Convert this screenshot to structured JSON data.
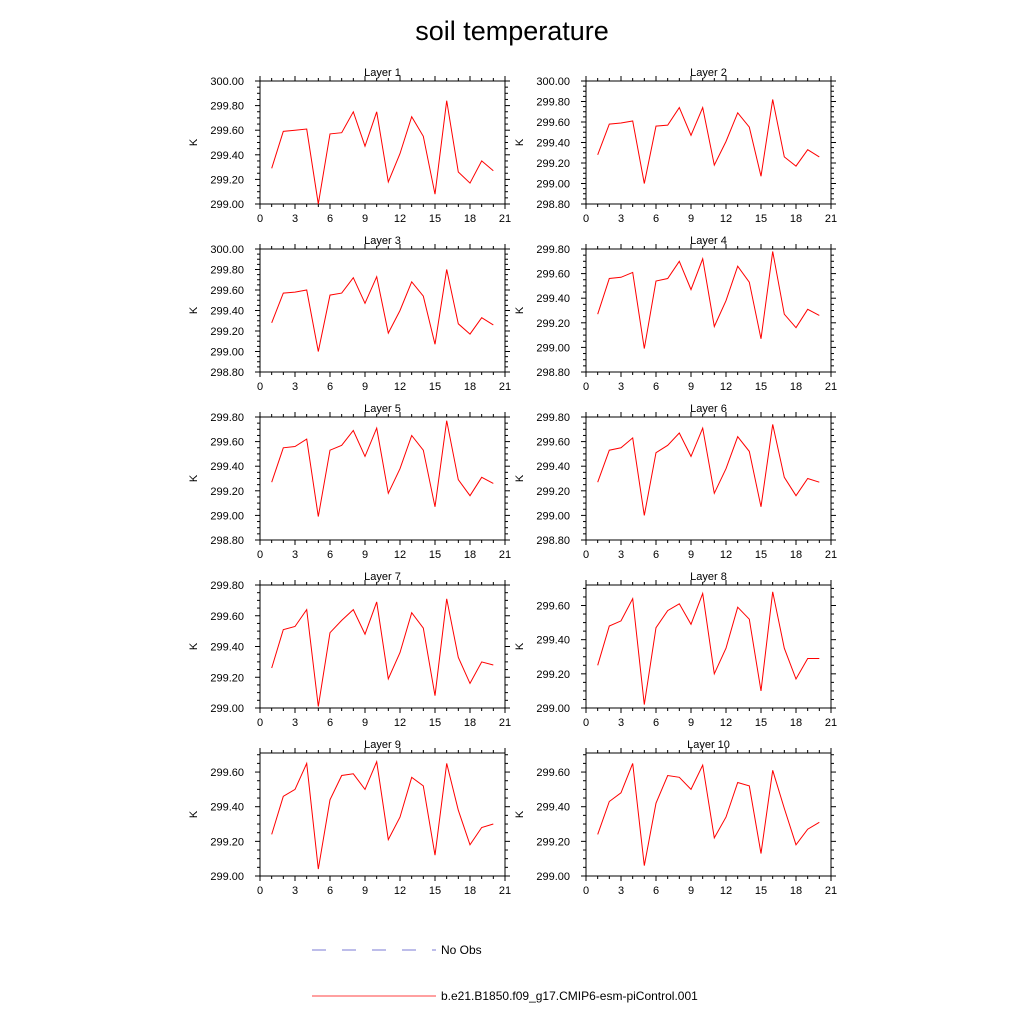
{
  "title": "soil temperature",
  "colors": {
    "model": "#ff0000",
    "obs": "#7b7bd6",
    "axis": "#000000"
  },
  "legend": {
    "entries": [
      {
        "label": "No Obs",
        "style": "dashed",
        "color": "#7b7bd6"
      },
      {
        "label": "b.e21.B1850.f09_g17.CMIP6-esm-piControl.001",
        "style": "solid",
        "color": "#ff0000"
      }
    ]
  },
  "chart_data": [
    {
      "type": "line",
      "title": "Layer 1",
      "ylabel": "K",
      "xlim": [
        0,
        21
      ],
      "ylim": [
        299.0,
        300.0
      ],
      "xticks": [
        0,
        3,
        6,
        9,
        12,
        15,
        18,
        21
      ],
      "yticks": [
        "299.00",
        "299.20",
        "299.40",
        "299.60",
        "299.80",
        "300.00"
      ],
      "x": [
        1,
        2,
        3,
        4,
        5,
        6,
        7,
        8,
        9,
        10,
        11,
        12,
        13,
        14,
        15,
        16,
        17,
        18,
        19,
        20
      ],
      "series": [
        {
          "name": "b.e21.B1850.f09_g17.CMIP6-esm-piControl.001",
          "values": [
            299.29,
            299.59,
            299.6,
            299.61,
            299.0,
            299.57,
            299.58,
            299.75,
            299.47,
            299.75,
            299.18,
            299.41,
            299.71,
            299.55,
            299.08,
            299.84,
            299.26,
            299.17,
            299.35,
            299.27
          ]
        }
      ]
    },
    {
      "type": "line",
      "title": "Layer 2",
      "ylabel": "K",
      "xlim": [
        0,
        21
      ],
      "ylim": [
        298.8,
        300.0
      ],
      "xticks": [
        0,
        3,
        6,
        9,
        12,
        15,
        18,
        21
      ],
      "yticks": [
        "298.80",
        "299.00",
        "299.20",
        "299.40",
        "299.60",
        "299.80",
        "300.00"
      ],
      "x": [
        1,
        2,
        3,
        4,
        5,
        6,
        7,
        8,
        9,
        10,
        11,
        12,
        13,
        14,
        15,
        16,
        17,
        18,
        19,
        20
      ],
      "series": [
        {
          "name": "b.e21.B1850.f09_g17.CMIP6-esm-piControl.001",
          "values": [
            299.28,
            299.58,
            299.59,
            299.61,
            299.0,
            299.56,
            299.57,
            299.74,
            299.47,
            299.74,
            299.18,
            299.41,
            299.69,
            299.55,
            299.07,
            299.82,
            299.26,
            299.17,
            299.33,
            299.26
          ]
        }
      ]
    },
    {
      "type": "line",
      "title": "Layer 3",
      "ylabel": "K",
      "xlim": [
        0,
        21
      ],
      "ylim": [
        298.8,
        300.0
      ],
      "xticks": [
        0,
        3,
        6,
        9,
        12,
        15,
        18,
        21
      ],
      "yticks": [
        "298.80",
        "299.00",
        "299.20",
        "299.40",
        "299.60",
        "299.80",
        "300.00"
      ],
      "x": [
        1,
        2,
        3,
        4,
        5,
        6,
        7,
        8,
        9,
        10,
        11,
        12,
        13,
        14,
        15,
        16,
        17,
        18,
        19,
        20
      ],
      "series": [
        {
          "name": "b.e21.B1850.f09_g17.CMIP6-esm-piControl.001",
          "values": [
            299.28,
            299.57,
            299.58,
            299.6,
            299.0,
            299.55,
            299.57,
            299.72,
            299.47,
            299.73,
            299.18,
            299.4,
            299.68,
            299.54,
            299.07,
            299.8,
            299.27,
            299.17,
            299.33,
            299.26
          ]
        }
      ]
    },
    {
      "type": "line",
      "title": "Layer 4",
      "ylabel": "K",
      "xlim": [
        0,
        21
      ],
      "ylim": [
        298.8,
        299.8
      ],
      "xticks": [
        0,
        3,
        6,
        9,
        12,
        15,
        18,
        21
      ],
      "yticks": [
        "298.80",
        "299.00",
        "299.20",
        "299.40",
        "299.60",
        "299.80"
      ],
      "x": [
        1,
        2,
        3,
        4,
        5,
        6,
        7,
        8,
        9,
        10,
        11,
        12,
        13,
        14,
        15,
        16,
        17,
        18,
        19,
        20
      ],
      "series": [
        {
          "name": "b.e21.B1850.f09_g17.CMIP6-esm-piControl.001",
          "values": [
            299.27,
            299.56,
            299.57,
            299.61,
            298.99,
            299.54,
            299.56,
            299.7,
            299.47,
            299.72,
            299.17,
            299.38,
            299.66,
            299.53,
            299.07,
            299.78,
            299.27,
            299.16,
            299.31,
            299.26
          ]
        }
      ]
    },
    {
      "type": "line",
      "title": "Layer 5",
      "ylabel": "K",
      "xlim": [
        0,
        21
      ],
      "ylim": [
        298.8,
        299.8
      ],
      "xticks": [
        0,
        3,
        6,
        9,
        12,
        15,
        18,
        21
      ],
      "yticks": [
        "298.80",
        "299.00",
        "299.20",
        "299.40",
        "299.60",
        "299.80"
      ],
      "x": [
        1,
        2,
        3,
        4,
        5,
        6,
        7,
        8,
        9,
        10,
        11,
        12,
        13,
        14,
        15,
        16,
        17,
        18,
        19,
        20
      ],
      "series": [
        {
          "name": "b.e21.B1850.f09_g17.CMIP6-esm-piControl.001",
          "values": [
            299.27,
            299.55,
            299.56,
            299.62,
            298.99,
            299.53,
            299.57,
            299.69,
            299.48,
            299.71,
            299.18,
            299.38,
            299.65,
            299.53,
            299.07,
            299.77,
            299.29,
            299.16,
            299.31,
            299.26
          ]
        }
      ]
    },
    {
      "type": "line",
      "title": "Layer 6",
      "ylabel": "K",
      "xlim": [
        0,
        21
      ],
      "ylim": [
        298.8,
        299.8
      ],
      "xticks": [
        0,
        3,
        6,
        9,
        12,
        15,
        18,
        21
      ],
      "yticks": [
        "298.80",
        "299.00",
        "299.20",
        "299.40",
        "299.60",
        "299.80"
      ],
      "x": [
        1,
        2,
        3,
        4,
        5,
        6,
        7,
        8,
        9,
        10,
        11,
        12,
        13,
        14,
        15,
        16,
        17,
        18,
        19,
        20
      ],
      "series": [
        {
          "name": "b.e21.B1850.f09_g17.CMIP6-esm-piControl.001",
          "values": [
            299.27,
            299.53,
            299.55,
            299.63,
            299.0,
            299.51,
            299.57,
            299.67,
            299.48,
            299.71,
            299.18,
            299.38,
            299.64,
            299.52,
            299.07,
            299.74,
            299.31,
            299.16,
            299.3,
            299.27
          ]
        }
      ]
    },
    {
      "type": "line",
      "title": "Layer 7",
      "ylabel": "K",
      "xlim": [
        0,
        21
      ],
      "ylim": [
        299.0,
        299.8
      ],
      "xticks": [
        0,
        3,
        6,
        9,
        12,
        15,
        18,
        21
      ],
      "yticks": [
        "299.00",
        "299.20",
        "299.40",
        "299.60",
        "299.80"
      ],
      "x": [
        1,
        2,
        3,
        4,
        5,
        6,
        7,
        8,
        9,
        10,
        11,
        12,
        13,
        14,
        15,
        16,
        17,
        18,
        19,
        20
      ],
      "series": [
        {
          "name": "b.e21.B1850.f09_g17.CMIP6-esm-piControl.001",
          "values": [
            299.26,
            299.51,
            299.53,
            299.64,
            299.01,
            299.49,
            299.57,
            299.64,
            299.48,
            299.69,
            299.19,
            299.36,
            299.62,
            299.52,
            299.08,
            299.71,
            299.33,
            299.16,
            299.3,
            299.28
          ]
        }
      ]
    },
    {
      "type": "line",
      "title": "Layer 8",
      "ylabel": "K",
      "xlim": [
        0,
        21
      ],
      "ylim": [
        299.0,
        299.72
      ],
      "xticks": [
        0,
        3,
        6,
        9,
        12,
        15,
        18,
        21
      ],
      "yticks": [
        "299.00",
        "299.20",
        "299.40",
        "299.60"
      ],
      "x": [
        1,
        2,
        3,
        4,
        5,
        6,
        7,
        8,
        9,
        10,
        11,
        12,
        13,
        14,
        15,
        16,
        17,
        18,
        19,
        20
      ],
      "series": [
        {
          "name": "b.e21.B1850.f09_g17.CMIP6-esm-piControl.001",
          "values": [
            299.25,
            299.48,
            299.51,
            299.64,
            299.02,
            299.47,
            299.57,
            299.61,
            299.49,
            299.67,
            299.2,
            299.35,
            299.59,
            299.52,
            299.1,
            299.68,
            299.35,
            299.17,
            299.29,
            299.29
          ]
        }
      ]
    },
    {
      "type": "line",
      "title": "Layer 9",
      "ylabel": "K",
      "xlim": [
        0,
        21
      ],
      "ylim": [
        299.0,
        299.71
      ],
      "xticks": [
        0,
        3,
        6,
        9,
        12,
        15,
        18,
        21
      ],
      "yticks": [
        "299.00",
        "299.20",
        "299.40",
        "299.60"
      ],
      "x": [
        1,
        2,
        3,
        4,
        5,
        6,
        7,
        8,
        9,
        10,
        11,
        12,
        13,
        14,
        15,
        16,
        17,
        18,
        19,
        20
      ],
      "series": [
        {
          "name": "b.e21.B1850.f09_g17.CMIP6-esm-piControl.001",
          "values": [
            299.24,
            299.46,
            299.5,
            299.65,
            299.04,
            299.44,
            299.58,
            299.59,
            299.5,
            299.66,
            299.21,
            299.34,
            299.57,
            299.52,
            299.12,
            299.65,
            299.38,
            299.18,
            299.28,
            299.3
          ]
        }
      ]
    },
    {
      "type": "line",
      "title": "Layer 10",
      "ylabel": "K",
      "xlim": [
        0,
        21
      ],
      "ylim": [
        299.0,
        299.71
      ],
      "xticks": [
        0,
        3,
        6,
        9,
        12,
        15,
        18,
        21
      ],
      "yticks": [
        "299.00",
        "299.20",
        "299.40",
        "299.60"
      ],
      "x": [
        1,
        2,
        3,
        4,
        5,
        6,
        7,
        8,
        9,
        10,
        11,
        12,
        13,
        14,
        15,
        16,
        17,
        18,
        19,
        20
      ],
      "series": [
        {
          "name": "b.e21.B1850.f09_g17.CMIP6-esm-piControl.001",
          "values": [
            299.24,
            299.43,
            299.48,
            299.65,
            299.06,
            299.42,
            299.58,
            299.57,
            299.5,
            299.64,
            299.22,
            299.34,
            299.54,
            299.52,
            299.13,
            299.61,
            299.39,
            299.18,
            299.27,
            299.31
          ]
        }
      ]
    }
  ]
}
